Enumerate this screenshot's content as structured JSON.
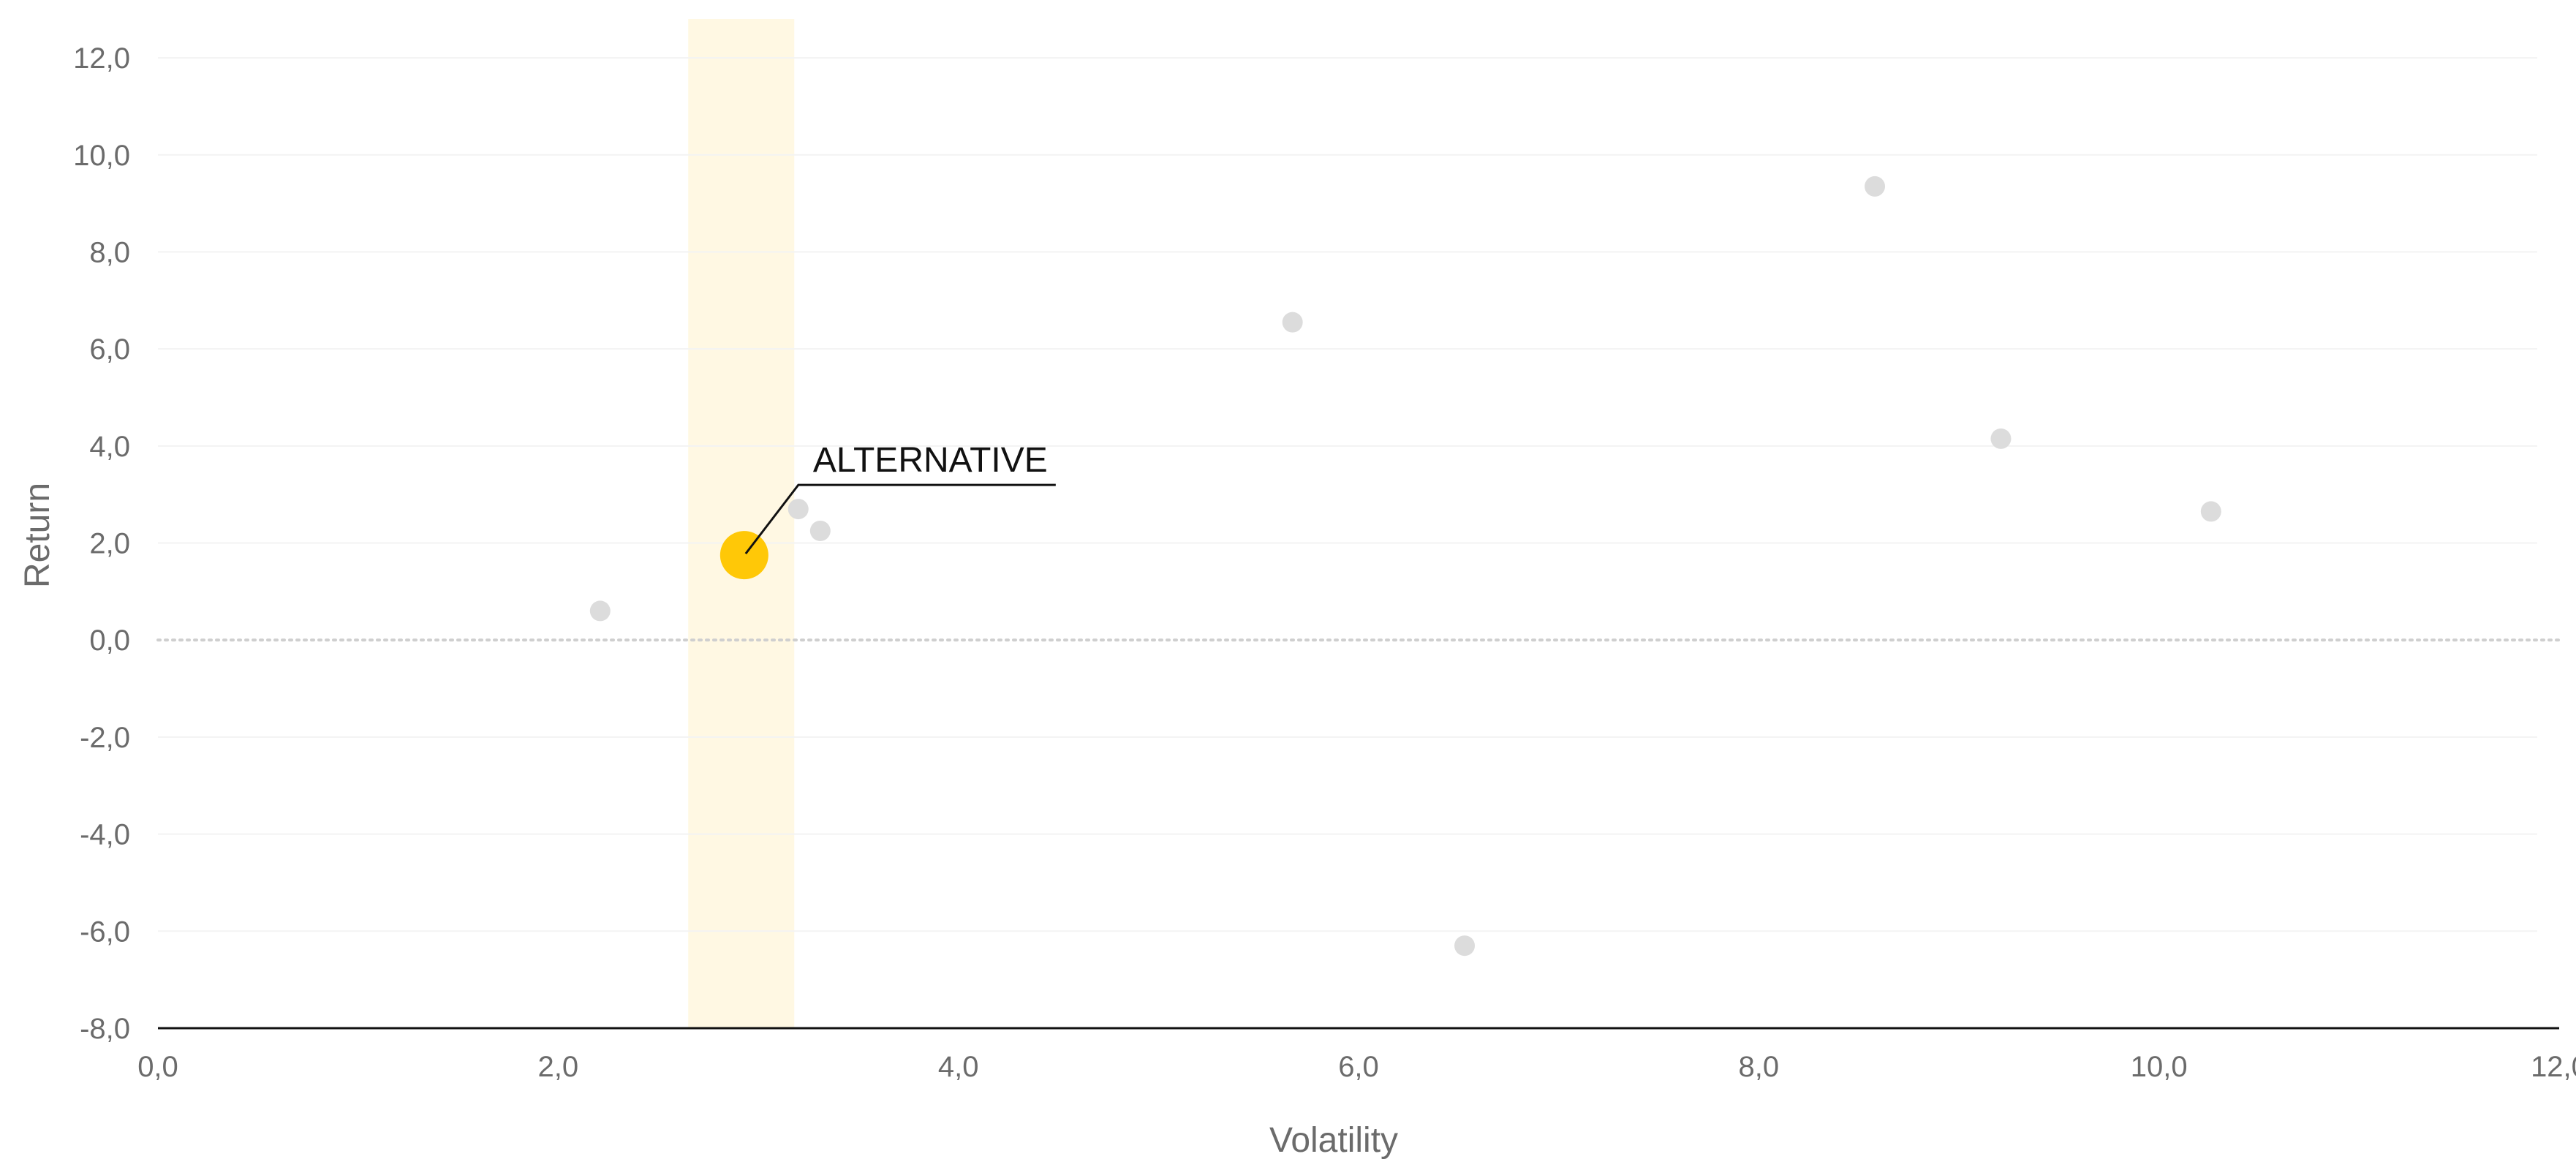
{
  "chart_data": {
    "type": "scatter",
    "title": "",
    "xlabel": "Volatility",
    "ylabel": "Return",
    "xlim": [
      0,
      12
    ],
    "ylim": [
      -8,
      12.8
    ],
    "x_ticks": [
      0,
      2,
      4,
      6,
      8,
      10,
      12
    ],
    "x_tick_labels": [
      "0,0",
      "2,0",
      "4,0",
      "6,0",
      "8,0",
      "10,0",
      "12,0"
    ],
    "y_ticks": [
      12,
      10,
      8,
      6,
      4,
      2,
      0,
      -2,
      -4,
      -6,
      -8
    ],
    "y_tick_labels": [
      "12,0",
      "10,0",
      "8,0",
      "6,0",
      "4,0",
      "2,0",
      "0,0",
      "-2,0",
      "-4,0",
      "-6,0",
      "-8,0"
    ],
    "grid": true,
    "zero_line": "dotted",
    "highlight_band": {
      "x_from": 2.65,
      "x_to": 3.18,
      "color": "#FFF8E3"
    },
    "series": [
      {
        "role": "other",
        "color": "#DCDCDC",
        "points": [
          {
            "x": 2.21,
            "y": 0.6
          },
          {
            "x": 3.2,
            "y": 2.7
          },
          {
            "x": 3.31,
            "y": 2.25
          },
          {
            "x": 5.67,
            "y": 6.55
          },
          {
            "x": 6.53,
            "y": -6.3
          },
          {
            "x": 8.58,
            "y": 9.35
          },
          {
            "x": 9.21,
            "y": 4.15
          },
          {
            "x": 10.26,
            "y": 2.65
          }
        ]
      },
      {
        "role": "highlighted",
        "color": "#FFC807",
        "points": [
          {
            "x": 2.93,
            "y": 1.75,
            "label": "ALTERNATIVE"
          }
        ]
      }
    ],
    "annotation": {
      "text": "ALTERNATIVE",
      "target_x": 2.93,
      "target_y": 1.75
    }
  }
}
